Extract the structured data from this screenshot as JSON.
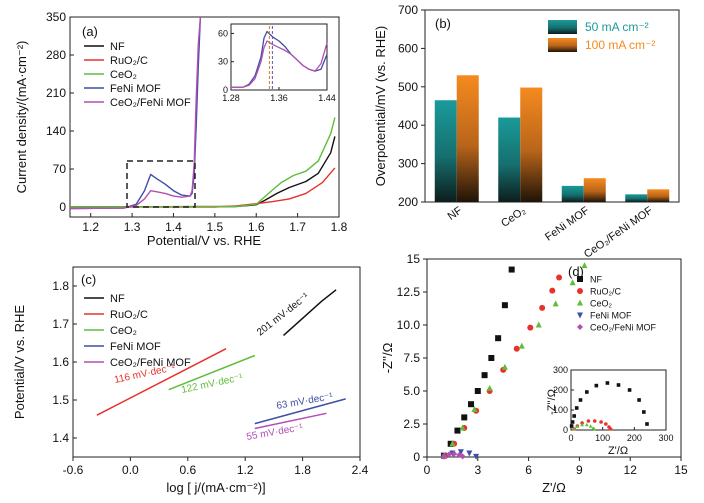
{
  "colors": {
    "NF": "#111111",
    "RuO2C": "#e8312a",
    "CeO2": "#5fbd3a",
    "FeNiMOF": "#3d4fa6",
    "CeO2FeNiMOF": "#b34fb3",
    "bar50": "#1a9a9a",
    "bar100": "#f58a1f"
  },
  "chart_data": [
    {
      "panel": "(a)",
      "type": "line",
      "xlabel": "Potential/V vs. RHE",
      "ylabel": "Current density/(mA·cm⁻²)",
      "xlim": [
        1.15,
        1.8
      ],
      "ylim": [
        -5,
        350
      ],
      "xticks": [
        "1.2",
        "1.3",
        "1.4",
        "1.5",
        "1.6",
        "1.7",
        "1.8"
      ],
      "yticks": [
        "0",
        "70",
        "140",
        "210",
        "280",
        "350"
      ],
      "legend": [
        "NF",
        "RuO₂/C",
        "CeO₂",
        "FeNi MOF",
        "CeO₂/FeNi MOF"
      ],
      "legend_position": "top-left",
      "series": [
        {
          "name": "NF",
          "points": [
            [
              1.15,
              0
            ],
            [
              1.55,
              1
            ],
            [
              1.6,
              4
            ],
            [
              1.62,
              12
            ],
            [
              1.65,
              25
            ],
            [
              1.68,
              36
            ],
            [
              1.72,
              47
            ],
            [
              1.75,
              62
            ],
            [
              1.78,
              100
            ],
            [
              1.79,
              130
            ]
          ]
        },
        {
          "name": "RuO₂/C",
          "points": [
            [
              1.15,
              0
            ],
            [
              1.5,
              0
            ],
            [
              1.55,
              2
            ],
            [
              1.6,
              6
            ],
            [
              1.64,
              10
            ],
            [
              1.68,
              15
            ],
            [
              1.72,
              25
            ],
            [
              1.76,
              45
            ],
            [
              1.79,
              72
            ]
          ]
        },
        {
          "name": "CeO₂",
          "points": [
            [
              1.15,
              0
            ],
            [
              1.55,
              1
            ],
            [
              1.6,
              5
            ],
            [
              1.63,
              25
            ],
            [
              1.66,
              45
            ],
            [
              1.69,
              58
            ],
            [
              1.72,
              66
            ],
            [
              1.75,
              85
            ],
            [
              1.78,
              135
            ],
            [
              1.79,
              165
            ]
          ]
        },
        {
          "name": "FeNi MOF",
          "points": [
            [
              1.15,
              -3
            ],
            [
              1.28,
              -2
            ],
            [
              1.31,
              5
            ],
            [
              1.33,
              30
            ],
            [
              1.345,
              60
            ],
            [
              1.36,
              52
            ],
            [
              1.38,
              42
            ],
            [
              1.4,
              30
            ],
            [
              1.42,
              22
            ],
            [
              1.44,
              20
            ],
            [
              1.445,
              25
            ],
            [
              1.45,
              60
            ],
            [
              1.455,
              150
            ],
            [
              1.46,
              260
            ],
            [
              1.465,
              350
            ]
          ]
        },
        {
          "name": "CeO₂/FeNi MOF",
          "points": [
            [
              1.15,
              -3
            ],
            [
              1.28,
              -2
            ],
            [
              1.31,
              3
            ],
            [
              1.33,
              15
            ],
            [
              1.345,
              30
            ],
            [
              1.36,
              28
            ],
            [
              1.38,
              25
            ],
            [
              1.4,
              20
            ],
            [
              1.42,
              18
            ],
            [
              1.44,
              20
            ],
            [
              1.445,
              30
            ],
            [
              1.45,
              80
            ],
            [
              1.455,
              200
            ],
            [
              1.46,
              300
            ],
            [
              1.465,
              350
            ]
          ]
        }
      ],
      "inset": {
        "xlim": [
          1.28,
          1.44
        ],
        "ylim": [
          0,
          70
        ],
        "xticks": [
          "1.28",
          "1.36",
          "1.44"
        ],
        "yticks": [
          "0",
          "30",
          "60"
        ],
        "series": [
          {
            "name": "FeNi MOF",
            "points": [
              [
                1.28,
                3
              ],
              [
                1.3,
                3
              ],
              [
                1.31,
                6
              ],
              [
                1.32,
                15
              ],
              [
                1.33,
                35
              ],
              [
                1.335,
                55
              ],
              [
                1.34,
                62
              ],
              [
                1.35,
                56
              ],
              [
                1.36,
                52
              ],
              [
                1.37,
                46
              ],
              [
                1.38,
                38
              ],
              [
                1.39,
                32
              ],
              [
                1.4,
                26
              ],
              [
                1.41,
                22
              ],
              [
                1.42,
                20
              ],
              [
                1.43,
                22
              ],
              [
                1.44,
                38
              ]
            ]
          },
          {
            "name": "CeO₂/FeNi MOF",
            "points": [
              [
                1.28,
                3
              ],
              [
                1.3,
                3
              ],
              [
                1.31,
                5
              ],
              [
                1.32,
                12
              ],
              [
                1.33,
                30
              ],
              [
                1.335,
                45
              ],
              [
                1.34,
                52
              ],
              [
                1.35,
                48
              ],
              [
                1.36,
                45
              ],
              [
                1.37,
                42
              ],
              [
                1.38,
                38
              ],
              [
                1.39,
                32
              ],
              [
                1.4,
                26
              ],
              [
                1.41,
                22
              ],
              [
                1.42,
                20
              ],
              [
                1.43,
                28
              ],
              [
                1.44,
                50
              ]
            ]
          }
        ],
        "markers": [
          1.344,
          1.349
        ]
      }
    },
    {
      "panel": "(b)",
      "type": "bar",
      "ylabel": "Overpotential/mV (vs. RHE)",
      "ylim": [
        200,
        700
      ],
      "yticks": [
        "200",
        "300",
        "400",
        "500",
        "600",
        "700"
      ],
      "categories": [
        "NF",
        "CeO₂",
        "FeNi MOF",
        "CeO₂/FeNi MOF"
      ],
      "series": [
        {
          "name": "50 mA cm⁻²",
          "values": [
            465,
            420,
            242,
            220
          ]
        },
        {
          "name": "100 mA cm⁻²",
          "values": [
            530,
            498,
            262,
            233
          ]
        }
      ],
      "legend_position": "top-right"
    },
    {
      "panel": "(c)",
      "type": "line",
      "xlabel": "log [ j/(mA·cm⁻²)]",
      "ylabel": "Potential/V vs. RHE",
      "xlim": [
        -0.6,
        2.4
      ],
      "ylim": [
        1.35,
        1.85
      ],
      "xticks": [
        "-0.6",
        "0.0",
        "0.6",
        "1.2",
        "1.8",
        "2.4"
      ],
      "yticks": [
        "1.4",
        "1.5",
        "1.6",
        "1.7",
        "1.8"
      ],
      "legend": [
        "NF",
        "RuO₂/C",
        "CeO₂",
        "FeNi MOF",
        "CeO₂/FeNi MOF"
      ],
      "legend_position": "top-left",
      "series": [
        {
          "name": "NF",
          "points": [
            [
              1.6,
              1.67
            ],
            [
              2.0,
              1.76
            ],
            [
              2.15,
              1.79
            ]
          ]
        },
        {
          "name": "RuO₂/C",
          "points": [
            [
              -0.35,
              1.46
            ],
            [
              1.0,
              1.635
            ]
          ]
        },
        {
          "name": "CeO₂",
          "points": [
            [
              0.4,
              1.527
            ],
            [
              1.3,
              1.617
            ]
          ]
        },
        {
          "name": "FeNi MOF",
          "points": [
            [
              1.3,
              1.438
            ],
            [
              2.25,
              1.503
            ]
          ]
        },
        {
          "name": "CeO₂/FeNi MOF",
          "points": [
            [
              1.3,
              1.425
            ],
            [
              2.05,
              1.465
            ]
          ]
        }
      ],
      "annotations": [
        "201 mV·dec⁻¹",
        "116 mV·dec⁻¹",
        "122 mV·dec⁻¹",
        "63 mV·dec⁻¹",
        "55 mV·dec⁻¹"
      ]
    },
    {
      "panel": "(d)",
      "type": "scatter",
      "xlabel": "Z'/Ω",
      "ylabel": "-Z''/Ω",
      "xlim": [
        0,
        15
      ],
      "ylim": [
        0,
        15
      ],
      "xticks": [
        "0",
        "3",
        "6",
        "9",
        "12",
        "15"
      ],
      "yticks": [
        "0",
        "2.5",
        "5.0",
        "7.5",
        "10.0",
        "12.5",
        "15"
      ],
      "legend": [
        "NF",
        "RuO₂/C",
        "CeO₂",
        "FeNi MOF",
        "CeO₂/FeNi MOF"
      ],
      "legend_position": "top-right",
      "series": [
        {
          "name": "NF",
          "points": [
            [
              1.0,
              0.1
            ],
            [
              1.4,
              1.0
            ],
            [
              1.8,
              2.0
            ],
            [
              2.2,
              3.0
            ],
            [
              2.6,
              4.0
            ],
            [
              3.0,
              5.0
            ],
            [
              3.4,
              6.2
            ],
            [
              3.8,
              7.5
            ],
            [
              4.2,
              9.0
            ],
            [
              4.6,
              11.5
            ],
            [
              5.0,
              14.2
            ]
          ]
        },
        {
          "name": "RuO₂/C",
          "points": [
            [
              1.1,
              0.1
            ],
            [
              1.6,
              1.0
            ],
            [
              2.2,
              2.2
            ],
            [
              2.9,
              3.5
            ],
            [
              3.7,
              5.0
            ],
            [
              4.5,
              6.6
            ],
            [
              5.3,
              8.2
            ],
            [
              6.1,
              9.8
            ],
            [
              6.8,
              11.3
            ],
            [
              7.4,
              12.6
            ],
            [
              7.8,
              13.6
            ]
          ]
        },
        {
          "name": "CeO₂",
          "points": [
            [
              1.0,
              0.1
            ],
            [
              1.5,
              1.0
            ],
            [
              2.1,
              2.2
            ],
            [
              2.8,
              3.6
            ],
            [
              3.7,
              5.2
            ],
            [
              4.6,
              6.8
            ],
            [
              5.6,
              8.4
            ],
            [
              6.6,
              10.0
            ],
            [
              7.6,
              11.6
            ],
            [
              8.6,
              13.2
            ],
            [
              9.3,
              14.5
            ]
          ]
        },
        {
          "name": "FeNi MOF",
          "points": [
            [
              1.0,
              0.05
            ],
            [
              1.5,
              0.3
            ],
            [
              2.0,
              0.4
            ],
            [
              2.5,
              0.3
            ],
            [
              2.9,
              0.05
            ]
          ]
        },
        {
          "name": "CeO₂/FeNi MOF",
          "points": [
            [
              1.0,
              0.05
            ],
            [
              1.3,
              0.2
            ],
            [
              1.6,
              0.25
            ],
            [
              1.9,
              0.15
            ],
            [
              2.1,
              0.05
            ]
          ]
        }
      ],
      "inset": {
        "xlim": [
          0,
          300
        ],
        "ylim": [
          0,
          300
        ],
        "xticks": [
          "0",
          "100",
          "200",
          "300"
        ],
        "yticks": [
          "0",
          "100",
          "200",
          "300"
        ],
        "xlabel": "Z'/Ω",
        "ylabel": "-Z''/Ω",
        "series": [
          {
            "name": "NF",
            "points": [
              [
                2,
                20
              ],
              [
                5,
                40
              ],
              [
                10,
                70
              ],
              [
                18,
                110
              ],
              [
                30,
                150
              ],
              [
                50,
                190
              ],
              [
                80,
                222
              ],
              [
                115,
                235
              ],
              [
                150,
                225
              ],
              [
                185,
                200
              ],
              [
                215,
                150
              ],
              [
                230,
                90
              ],
              [
                240,
                30
              ]
            ]
          },
          {
            "name": "RuO₂/C",
            "points": [
              [
                10,
                5
              ],
              [
                20,
                20
              ],
              [
                35,
                35
              ],
              [
                55,
                45
              ],
              [
                75,
                45
              ],
              [
                95,
                40
              ],
              [
                110,
                30
              ],
              [
                120,
                15
              ],
              [
                125,
                5
              ]
            ]
          },
          {
            "name": "CeO₂",
            "points": [
              [
                10,
                5
              ],
              [
                20,
                18
              ],
              [
                35,
                25
              ],
              [
                50,
                25
              ],
              [
                62,
                18
              ],
              [
                70,
                8
              ],
              [
                74,
                3
              ]
            ]
          }
        ]
      }
    }
  ],
  "panel_a": {
    "label": "(a)",
    "xlabel": "Potential/V vs. RHE",
    "ylabel": "Current density/(mA·cm⁻²)",
    "legend": [
      "NF",
      "RuO₂/C",
      "CeO₂",
      "FeNi MOF",
      "CeO₂/FeNi MOF"
    ]
  },
  "panel_b": {
    "label": "(b)",
    "ylabel": "Overpotential/mV (vs. RHE)",
    "legend": [
      "50 mA cm⁻²",
      "100 mA cm⁻²"
    ],
    "categories": [
      "NF",
      "CeO₂",
      "FeNi MOF",
      "CeO₂/FeNi MOF"
    ]
  },
  "panel_c": {
    "label": "(c)",
    "xlabel": "log [ j/(mA·cm⁻²)]",
    "ylabel": "Potential/V vs. RHE",
    "legend": [
      "NF",
      "RuO₂/C",
      "CeO₂",
      "FeNi MOF",
      "CeO₂/FeNi MOF"
    ],
    "annotations": [
      "201 mV·dec⁻¹",
      "116 mV·dec⁻¹",
      "122 mV·dec⁻¹",
      "63 mV·dec⁻¹",
      "55 mV·dec⁻¹"
    ]
  },
  "panel_d": {
    "label": "(d)",
    "xlabel": "Z'/Ω",
    "ylabel": "-Z''/Ω",
    "legend": [
      "NF",
      "RuO₂/C",
      "CeO₂",
      "FeNi MOF",
      "CeO₂/FeNi MOF"
    ]
  }
}
